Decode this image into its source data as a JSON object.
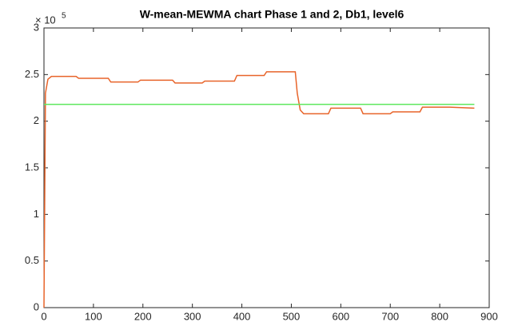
{
  "chart_data": {
    "type": "line",
    "title": "W-mean-MEWMA chart Phase 1 and 2, Db1, level6",
    "y_multiplier": "× 10",
    "y_multiplier_exponent": "5",
    "xlim": [
      0,
      900
    ],
    "xticks": [
      0,
      100,
      200,
      300,
      400,
      500,
      600,
      700,
      800,
      900
    ],
    "ylim": [
      0,
      3
    ],
    "yticks": [
      0,
      0.5,
      1,
      1.5,
      2,
      2.5,
      3
    ],
    "grid": false,
    "series": [
      {
        "color": "#e8642a",
        "x": [
          0,
          3,
          8,
          15,
          65,
          70,
          130,
          135,
          190,
          195,
          260,
          265,
          320,
          325,
          385,
          390,
          445,
          450,
          508,
          512,
          518,
          525,
          575,
          580,
          640,
          645,
          700,
          705,
          760,
          765,
          820,
          870
        ],
        "values": [
          0,
          2.3,
          2.45,
          2.48,
          2.48,
          2.46,
          2.46,
          2.42,
          2.42,
          2.44,
          2.44,
          2.41,
          2.41,
          2.43,
          2.43,
          2.49,
          2.49,
          2.53,
          2.53,
          2.3,
          2.12,
          2.08,
          2.08,
          2.14,
          2.14,
          2.08,
          2.08,
          2.1,
          2.1,
          2.15,
          2.15,
          2.14
        ]
      },
      {
        "color": "#5ee85e",
        "x": [
          0,
          870
        ],
        "values": [
          2.18,
          2.18
        ]
      }
    ]
  }
}
